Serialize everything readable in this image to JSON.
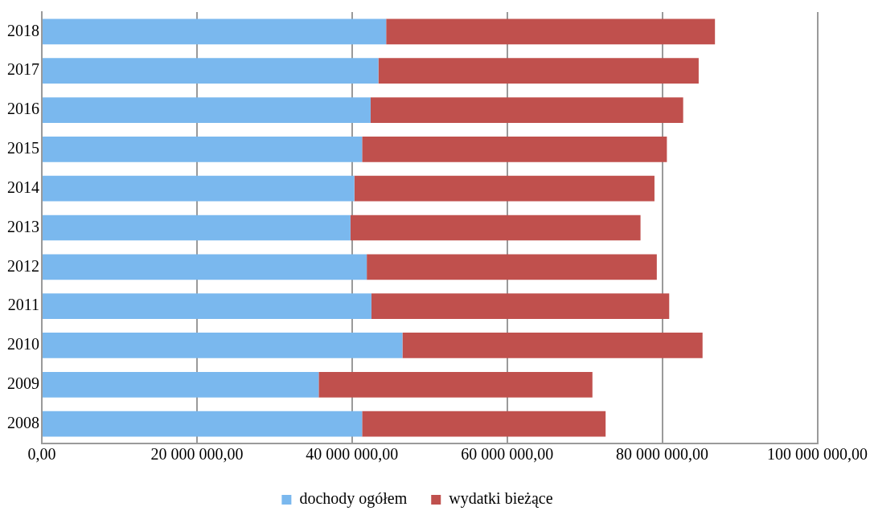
{
  "chart_data": {
    "type": "bar",
    "orientation": "horizontal",
    "stacked": true,
    "categories": [
      "2018",
      "2017",
      "2016",
      "2015",
      "2014",
      "2013",
      "2012",
      "2011",
      "2010",
      "2009",
      "2008"
    ],
    "series": [
      {
        "name": "dochody ogółem",
        "color": "#7ab8ee",
        "values": [
          44400000,
          43400000,
          42400000,
          41300000,
          40300000,
          39800000,
          41900000,
          42500000,
          46500000,
          35700000,
          41300000
        ]
      },
      {
        "name": "wydatki bieżące",
        "color": "#c0504d",
        "values": [
          42400000,
          41300000,
          40300000,
          39300000,
          38700000,
          37400000,
          37400000,
          38400000,
          38700000,
          35300000,
          31400000
        ]
      }
    ],
    "xlim": [
      0,
      100000000
    ],
    "xticks": [
      {
        "value": 0,
        "label": "0,00"
      },
      {
        "value": 20000000,
        "label": "20 000 000,00"
      },
      {
        "value": 40000000,
        "label": "40 000 000,00"
      },
      {
        "value": 60000000,
        "label": "60 000 000,00"
      },
      {
        "value": 80000000,
        "label": "80 000 000,00"
      },
      {
        "value": 100000000,
        "label": "100 000 000,00"
      }
    ],
    "grid": "x",
    "legend": "bottom"
  }
}
